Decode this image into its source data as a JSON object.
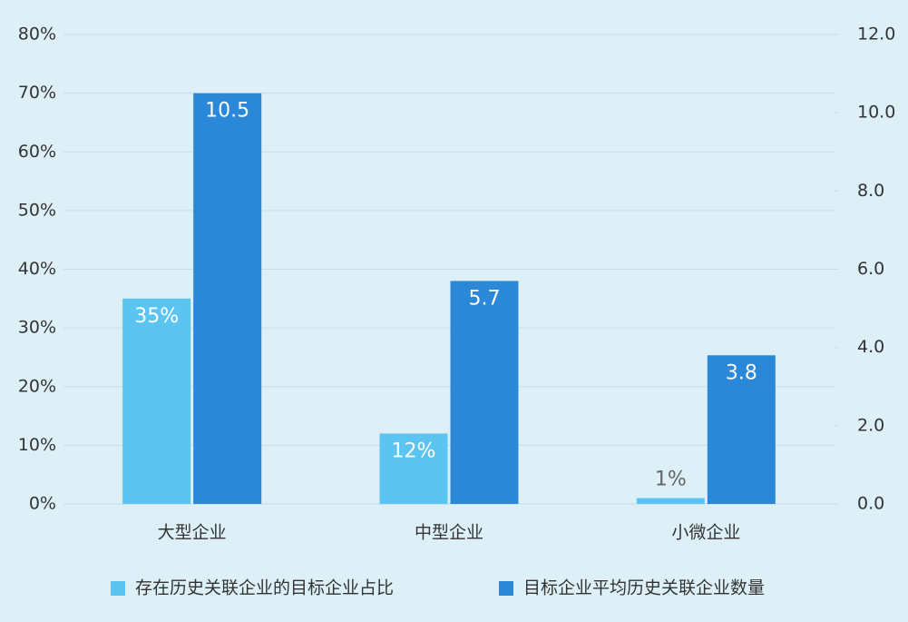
{
  "chart_data": {
    "type": "bar",
    "categories": [
      "大型企业",
      "中型企业",
      "小微企业"
    ],
    "series": [
      {
        "name": "存在历史关联企业的目标企业占比",
        "color": "#5bc4f0",
        "values": [
          35,
          12,
          1
        ],
        "value_labels": [
          "35%",
          "12%",
          "1%"
        ]
      },
      {
        "name": "目标企业平均历史关联企业数量",
        "color": "#2b87d8",
        "values": [
          10.5,
          5.7,
          3.8
        ],
        "axis": "y2"
      }
    ],
    "ylim": [
      0,
      80
    ],
    "yticks": [
      {
        "value": 0,
        "label": "0%"
      },
      {
        "value": 10,
        "label": "10%"
      },
      {
        "value": 20,
        "label": "20%"
      },
      {
        "value": 30,
        "label": "30%"
      },
      {
        "value": 40,
        "label": "40%"
      },
      {
        "value": 50,
        "label": "50%"
      },
      {
        "value": 60,
        "label": "60%"
      },
      {
        "value": 70,
        "label": "70%"
      },
      {
        "value": 80,
        "label": "80%"
      }
    ],
    "y2lim": [
      0,
      12
    ],
    "y2ticks": [
      {
        "value": 0,
        "label": "0.0"
      },
      {
        "value": 2,
        "label": "2.0"
      },
      {
        "value": 4,
        "label": "4.0"
      },
      {
        "value": 6,
        "label": "6.0"
      },
      {
        "value": 8,
        "label": "8.0"
      },
      {
        "value": 10,
        "label": "10.0"
      },
      {
        "value": 12,
        "label": "12.0"
      }
    ],
    "grid": true,
    "legend": "bottom"
  }
}
